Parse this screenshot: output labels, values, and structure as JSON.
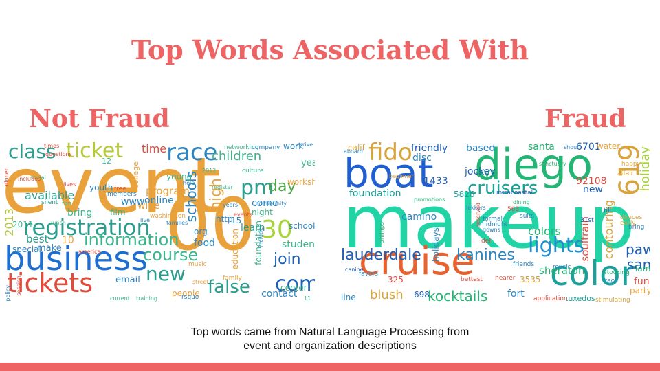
{
  "colors": {
    "accent": "#EE6464",
    "text": "#111111"
  },
  "slide": {
    "title": "Top Words Associated With",
    "left_heading": "Not Fraud",
    "right_heading": "Fraud",
    "caption_line1": "Top words came from Natural Language Processing from",
    "caption_line2": "event and organization descriptions"
  },
  "not_fraud_cloud": [
    {
      "t": "event",
      "c": "#E9A23B"
    },
    {
      "t": "00",
      "c": "#E9A23B"
    },
    {
      "t": "business",
      "c": "#1F6FD1"
    },
    {
      "t": "tickets",
      "c": "#E14B3B"
    },
    {
      "t": "registration",
      "c": "#2A9D8F"
    },
    {
      "t": "ticket",
      "c": "#B5C93A"
    },
    {
      "t": "class",
      "c": "#2A9D8F"
    },
    {
      "t": "race",
      "c": "#2E86C1"
    },
    {
      "t": "30",
      "c": "#A6D43A"
    },
    {
      "t": "com",
      "c": "#1F5FB4"
    },
    {
      "t": "join",
      "c": "#1F5FB4"
    },
    {
      "t": "false",
      "c": "#2A9D8F"
    },
    {
      "t": "new",
      "c": "#2A9D8F"
    },
    {
      "t": "information",
      "c": "#3DB58C"
    },
    {
      "t": "course",
      "c": "#3DB58C"
    },
    {
      "t": "pm",
      "c": "#2A9D8F"
    },
    {
      "t": "day",
      "c": "#4DA84A"
    },
    {
      "t": "high",
      "c": "#E9A23B"
    },
    {
      "t": "schools",
      "c": "#2E86C1"
    },
    {
      "t": "children",
      "c": "#3DB58C"
    },
    {
      "t": "time",
      "c": "#E14B3B"
    },
    {
      "t": "program",
      "c": "#E9A23B"
    },
    {
      "t": "online",
      "c": "#2E86C1"
    },
    {
      "t": "available",
      "c": "#2A9D8F"
    },
    {
      "t": "best",
      "c": "#2A9D8F"
    },
    {
      "t": "make",
      "c": "#2E86C1"
    },
    {
      "t": "10",
      "c": "#E9A23B"
    },
    {
      "t": "email",
      "c": "#2E86C1"
    },
    {
      "t": "contact",
      "c": "#2E86C1"
    },
    {
      "t": "students",
      "c": "#3DB58C"
    },
    {
      "t": "learn",
      "c": "#2A9D8F"
    },
    {
      "t": "come",
      "c": "#2E86C1"
    },
    {
      "t": "night",
      "c": "#3DB58C"
    },
    {
      "t": "food",
      "c": "#2E86C1"
    },
    {
      "t": "org",
      "c": "#2E86C1"
    },
    {
      "t": "http",
      "c": "#2E86C1"
    },
    {
      "t": "wine",
      "c": "#E9A23B"
    },
    {
      "t": "film",
      "c": "#3DB58C"
    },
    {
      "t": "www",
      "c": "#2E86C1"
    },
    {
      "t": "young",
      "c": "#3DB58C"
    },
    {
      "t": "2013",
      "c": "#B5C93A"
    },
    {
      "t": "2011",
      "c": "#3DB58C"
    },
    {
      "t": "school",
      "c": "#2E86C1"
    },
    {
      "t": "workshop",
      "c": "#E9A23B"
    },
    {
      "t": "year",
      "c": "#3DB58C"
    },
    {
      "t": "work",
      "c": "#2E86C1"
    },
    {
      "t": "education",
      "c": "#E9A23B"
    },
    {
      "t": "foundation",
      "c": "#3DB58C"
    },
    {
      "t": "people",
      "c": "#E9A23B"
    },
    {
      "t": "bring",
      "c": "#3DB58C"
    },
    {
      "t": "youth",
      "c": "#2E86C1"
    },
    {
      "t": "college",
      "c": "#E9A23B"
    },
    {
      "t": "12",
      "c": "#3DB58C"
    },
    {
      "t": "15",
      "c": "#2E86C1"
    },
    {
      "t": "special",
      "c": "#2E86C1"
    },
    {
      "t": "center",
      "c": "#3DB58C"
    },
    {
      "t": "networking",
      "c": "#3DB58C"
    },
    {
      "t": "company",
      "c": "#2E86C1"
    },
    {
      "t": "silent",
      "c": "#2A9D8F"
    },
    {
      "t": "fun",
      "c": "#3DB58C"
    },
    {
      "t": "music",
      "c": "#E9A23B"
    },
    {
      "t": "free",
      "c": "#E14B3B"
    },
    {
      "t": "members",
      "c": "#2E86C1"
    },
    {
      "t": "register",
      "c": "#3DB58C"
    },
    {
      "t": "times",
      "c": "#E14B3B"
    },
    {
      "t": "lives",
      "c": "#E14B3B"
    },
    {
      "t": "dinner",
      "c": "#E14B3B"
    },
    {
      "t": "policy",
      "c": "#2E86C1"
    },
    {
      "t": "rsquo",
      "c": "#2E86C1"
    },
    {
      "t": "current",
      "c": "#3DB58C"
    },
    {
      "t": "training",
      "c": "#3DB58C"
    },
    {
      "t": "family",
      "c": "#E9A23B"
    },
    {
      "t": "community",
      "c": "#2E86C1"
    },
    {
      "t": "culture",
      "c": "#3DB58C"
    },
    {
      "t": "washington",
      "c": "#E9A23B"
    },
    {
      "t": "include",
      "c": "#2E86C1"
    },
    {
      "t": "events",
      "c": "#E14B3B"
    },
    {
      "t": "help",
      "c": "#2E86C1"
    },
    {
      "t": "social",
      "c": "#3DB58C"
    },
    {
      "t": "lunch",
      "c": "#3DB58C"
    },
    {
      "t": "includes",
      "c": "#E14B3B"
    },
    {
      "t": "questions",
      "c": "#E14B3B"
    },
    {
      "t": "arrive",
      "c": "#2E86C1"
    },
    {
      "t": "2012",
      "c": "#3DB58C"
    },
    {
      "t": "live",
      "c": "#2E86C1"
    },
    {
      "t": "families",
      "c": "#2E86C1"
    },
    {
      "t": "years",
      "c": "#2E86C1"
    },
    {
      "t": "street",
      "c": "#E9A23B"
    },
    {
      "t": "session",
      "c": "#E14B3B"
    },
    {
      "t": "america",
      "c": "#E14B3B"
    },
    {
      "t": "11",
      "c": "#3DB58C"
    }
  ],
  "fraud_cloud": [
    {
      "t": "makeup",
      "c": "#22D3A6"
    },
    {
      "t": "boat",
      "c": "#1F5FD1"
    },
    {
      "t": "diego",
      "c": "#22B573"
    },
    {
      "t": "cruise",
      "c": "#E8612F"
    },
    {
      "t": "color",
      "c": "#1BA09A"
    },
    {
      "t": "619",
      "c": "#D9A33B"
    },
    {
      "t": "fido",
      "c": "#D9A33B"
    },
    {
      "t": "cruisers",
      "c": "#1BA09A"
    },
    {
      "t": "lights",
      "c": "#1F8FD1"
    },
    {
      "t": "lauderdale",
      "c": "#1F5FB4"
    },
    {
      "t": "kanines",
      "c": "#2E86C1"
    },
    {
      "t": "kocktails",
      "c": "#22B573"
    },
    {
      "t": "blush",
      "c": "#D9A33B"
    },
    {
      "t": "eye",
      "c": "#22B573"
    },
    {
      "t": "paws",
      "c": "#1F5FB4"
    },
    {
      "t": "san",
      "c": "#1F5FB4"
    },
    {
      "t": "holiday",
      "c": "#A6D43A"
    },
    {
      "t": "contouring",
      "c": "#D9A33B"
    },
    {
      "t": "soultrain",
      "c": "#E14B3B"
    },
    {
      "t": "sheraton",
      "c": "#22B573"
    },
    {
      "t": "colors",
      "c": "#22B573"
    },
    {
      "t": "camino",
      "c": "#2E86C1"
    },
    {
      "t": "holidays",
      "c": "#2E86C1"
    },
    {
      "t": "foundation",
      "c": "#1BA09A"
    },
    {
      "t": "friendly",
      "c": "#1F5FB4"
    },
    {
      "t": "based",
      "c": "#2E86C1"
    },
    {
      "t": "santa",
      "c": "#22B573"
    },
    {
      "t": "6701",
      "c": "#1F5FB4"
    },
    {
      "t": "water",
      "c": "#E9A23B"
    },
    {
      "t": "jockey",
      "c": "#1F5FB4"
    },
    {
      "t": "calif",
      "c": "#D9A33B"
    },
    {
      "t": "disc",
      "c": "#2E86C1"
    },
    {
      "t": "1433",
      "c": "#1F5FB4"
    },
    {
      "t": "5826",
      "c": "#1BA09A"
    },
    {
      "t": "92108",
      "c": "#E14B3B"
    },
    {
      "t": "new",
      "c": "#1F5FB4"
    },
    {
      "t": "fort",
      "c": "#2E86C1"
    },
    {
      "t": "fun",
      "c": "#E14B3B"
    },
    {
      "t": "party",
      "c": "#E9A23B"
    },
    {
      "t": "iam",
      "c": "#22B573"
    },
    {
      "t": "3535",
      "c": "#D9A33B"
    },
    {
      "t": "325",
      "c": "#E14B3B"
    },
    {
      "t": "698",
      "c": "#1F5FB4"
    },
    {
      "t": "line",
      "c": "#2E86C1"
    },
    {
      "t": "tuxedos",
      "c": "#1BA09A"
    },
    {
      "t": "application",
      "c": "#E14B3B"
    },
    {
      "t": "563",
      "c": "#E14B3B"
    },
    {
      "t": "suits",
      "c": "#2E86C1"
    },
    {
      "t": "friends",
      "c": "#2E86C1"
    },
    {
      "t": "music",
      "c": "#2E86C1"
    },
    {
      "t": "nearer",
      "c": "#E14B3B"
    },
    {
      "t": "bettest",
      "c": "#E14B3B"
    },
    {
      "t": "favors",
      "c": "#2E86C1"
    },
    {
      "t": "del",
      "c": "#E14B3B"
    },
    {
      "t": "midnight",
      "c": "#2E86C1"
    },
    {
      "t": "intracoastal",
      "c": "#1F5FB4"
    },
    {
      "t": "stocking",
      "c": "#22B573"
    },
    {
      "t": "face",
      "c": "#2E86C1"
    },
    {
      "t": "31st",
      "c": "#1F5FB4"
    },
    {
      "t": "till",
      "c": "#1F5FB4"
    },
    {
      "t": "bring",
      "c": "#2E86C1"
    },
    {
      "t": "dances",
      "c": "#D9A33B"
    },
    {
      "t": "early",
      "c": "#D9A33B"
    },
    {
      "t": "happy",
      "c": "#E9A23B"
    },
    {
      "t": "affair",
      "c": "#D9A33B"
    },
    {
      "t": "formal",
      "c": "#2E86C1"
    },
    {
      "t": "phillips",
      "c": "#22B573"
    },
    {
      "t": "aboard",
      "c": "#2E86C1"
    },
    {
      "t": "promotions",
      "c": "#22B573"
    },
    {
      "t": "stimulating",
      "c": "#D9A33B"
    },
    {
      "t": "shout",
      "c": "#2E86C1"
    },
    {
      "t": "sanctuary",
      "c": "#22B573"
    },
    {
      "t": "gowns",
      "c": "#2E86C1"
    },
    {
      "t": "dining",
      "c": "#22B573"
    },
    {
      "t": "lekkers",
      "c": "#2E86C1"
    },
    {
      "t": "reserved",
      "c": "#E14B3B"
    },
    {
      "t": "canine",
      "c": "#1F5FB4"
    },
    {
      "t": "beginner",
      "c": "#E9A23B"
    }
  ]
}
